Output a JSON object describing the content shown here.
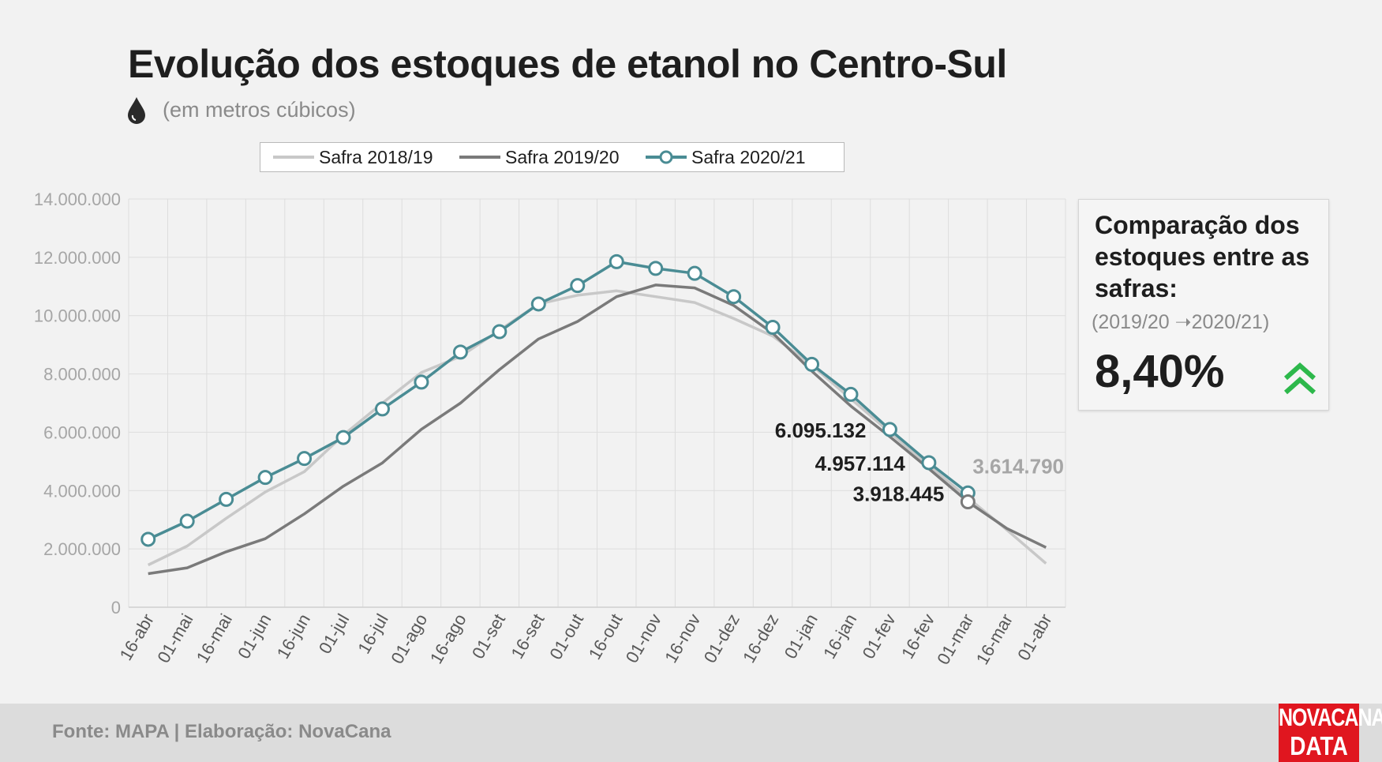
{
  "title": "Evolução dos estoques de etanol no Centro-Sul",
  "subtitle": "(em metros cúbicos)",
  "icons": {
    "unit": "drop-icon",
    "trend": "double-chevron-up-icon"
  },
  "colors": {
    "safra_2018_19": "#c8c8c8",
    "safra_2019_20": "#7a7a7a",
    "safra_2020_21": "#4a8c94",
    "trend_up": "#2db84b",
    "brand": "#e0161f"
  },
  "comparison": {
    "title": "Comparação dos estoques entre as safras:",
    "subtitle": "(2019/20 ➝2020/21)",
    "value": "8,40%"
  },
  "footer": {
    "text": "Fonte: MAPA  | Elaboração: NovaCana"
  },
  "brand": {
    "line1": "NOVACANA",
    "line2": "DATA"
  },
  "chart_data": {
    "type": "line",
    "categories": [
      "16-abr",
      "01-mai",
      "16-mai",
      "01-jun",
      "16-jun",
      "01-jul",
      "16-jul",
      "01-ago",
      "16-ago",
      "01-set",
      "16-set",
      "01-out",
      "16-out",
      "01-nov",
      "16-nov",
      "01-dez",
      "16-dez",
      "01-jan",
      "16-jan",
      "01-fev",
      "16-fev",
      "01-mar",
      "16-mar",
      "01-abr"
    ],
    "series": [
      {
        "name": "Safra 2018/19",
        "values": [
          1450000,
          2100000,
          3050000,
          3950000,
          4650000,
          5900000,
          7000000,
          8050000,
          8600000,
          9500000,
          10400000,
          10700000,
          10850000,
          10650000,
          10450000,
          9900000,
          9300000,
          8300000,
          7150000,
          6000000,
          4850000,
          3750000,
          2650000,
          1500000
        ]
      },
      {
        "name": "Safra 2019/20",
        "values": [
          1150000,
          1350000,
          1900000,
          2350000,
          3200000,
          4150000,
          4950000,
          6100000,
          7000000,
          8150000,
          9200000,
          9800000,
          10650000,
          11050000,
          10950000,
          10350000,
          9400000,
          8100000,
          6900000,
          5850000,
          4750000,
          3614790,
          2700000,
          2050000
        ]
      },
      {
        "name": "Safra 2020/21",
        "values": [
          2330000,
          2950000,
          3700000,
          4450000,
          5100000,
          5820000,
          6800000,
          7720000,
          8750000,
          9450000,
          10400000,
          11030000,
          11850000,
          11620000,
          11450000,
          10650000,
          9600000,
          8330000,
          7300000,
          6095132,
          4957114,
          3918445,
          null,
          null
        ]
      }
    ],
    "annotations": [
      {
        "label": "6.095.132",
        "series": "Safra 2020/21",
        "category": "01-fev"
      },
      {
        "label": "4.957.114",
        "series": "Safra 2020/21",
        "category": "16-fev"
      },
      {
        "label": "3.918.445",
        "series": "Safra 2020/21",
        "category": "01-mar"
      },
      {
        "label": "3.614.790",
        "series": "Safra 2019/20",
        "category": "01-mar"
      }
    ],
    "y_ticks": [
      "0",
      "2.000.000",
      "4.000.000",
      "6.000.000",
      "8.000.000",
      "10.000.000",
      "12.000.000",
      "14.000.000"
    ],
    "ylim": [
      0,
      14000000
    ],
    "grid": true,
    "legend_position": "top"
  }
}
